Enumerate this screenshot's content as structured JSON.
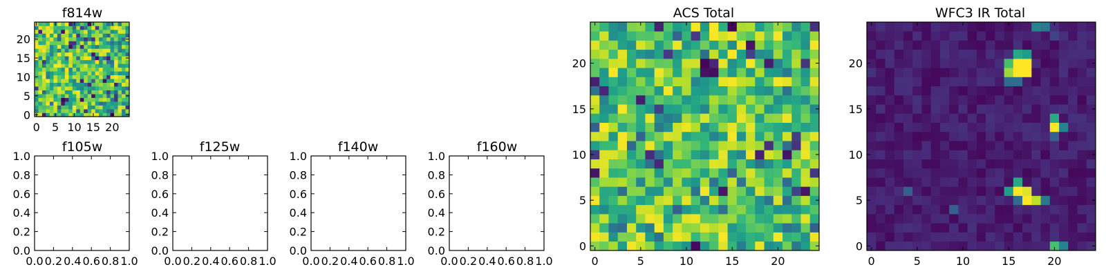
{
  "chart_data": [
    {
      "type": "heatmap",
      "title": "f814w",
      "colormap": "viridis",
      "grid_size": [
        25,
        25
      ],
      "xticks": [
        "0",
        "5",
        "10",
        "15",
        "20"
      ],
      "yticks": [
        "0",
        "5",
        "10",
        "15",
        "20"
      ],
      "xlim": [
        -0.5,
        24.5
      ],
      "ylim": [
        -0.5,
        24.5
      ],
      "pattern": "uniform noise, mostly high values"
    },
    {
      "type": "empty",
      "title": "f105w",
      "xticks": [
        "0.0",
        "0.2",
        "0.4",
        "0.6",
        "0.8",
        "1.0"
      ],
      "yticks": [
        "0.0",
        "0.2",
        "0.4",
        "0.6",
        "0.8",
        "1.0"
      ],
      "xlim": [
        0,
        1
      ],
      "ylim": [
        0,
        1
      ]
    },
    {
      "type": "empty",
      "title": "f125w",
      "xticks": [
        "0.0",
        "0.2",
        "0.4",
        "0.6",
        "0.8",
        "1.0"
      ],
      "yticks": [
        "0.0",
        "0.2",
        "0.4",
        "0.6",
        "0.8",
        "1.0"
      ],
      "xlim": [
        0,
        1
      ],
      "ylim": [
        0,
        1
      ]
    },
    {
      "type": "empty",
      "title": "f140w",
      "xticks": [
        "0.0",
        "0.2",
        "0.4",
        "0.6",
        "0.8",
        "1.0"
      ],
      "yticks": [
        "0.0",
        "0.2",
        "0.4",
        "0.6",
        "0.8",
        "1.0"
      ],
      "xlim": [
        0,
        1
      ],
      "ylim": [
        0,
        1
      ]
    },
    {
      "type": "empty",
      "title": "f160w",
      "xticks": [
        "0.0",
        "0.2",
        "0.4",
        "0.6",
        "0.8",
        "1.0"
      ],
      "yticks": [
        "0.0",
        "0.2",
        "0.4",
        "0.6",
        "0.8",
        "1.0"
      ],
      "xlim": [
        0,
        1
      ],
      "ylim": [
        0,
        1
      ]
    },
    {
      "type": "heatmap",
      "title": "ACS Total",
      "colormap": "viridis",
      "grid_size": [
        25,
        25
      ],
      "xticks": [
        "0",
        "5",
        "10",
        "15",
        "20"
      ],
      "yticks": [
        "0",
        "5",
        "10",
        "15",
        "20"
      ],
      "xlim": [
        -0.5,
        24.5
      ],
      "ylim": [
        -0.5,
        24.5
      ],
      "pattern": "uniform noise, mostly high values"
    },
    {
      "type": "heatmap",
      "title": "WFC3 IR Total",
      "colormap": "viridis",
      "grid_size": [
        25,
        25
      ],
      "xticks": [
        "0",
        "5",
        "10",
        "15",
        "20"
      ],
      "yticks": [
        "0",
        "5",
        "10",
        "15",
        "20"
      ],
      "xlim": [
        -0.5,
        24.5
      ],
      "ylim": [
        -0.5,
        24.5
      ],
      "pattern": "dark background with bright sources",
      "bright_pixels": [
        {
          "x": 16,
          "y": 20,
          "v": 1.0
        },
        {
          "x": 17,
          "y": 20,
          "v": 1.0
        },
        {
          "x": 16,
          "y": 19,
          "v": 1.0
        },
        {
          "x": 17,
          "y": 19,
          "v": 1.0
        },
        {
          "x": 15,
          "y": 19,
          "v": 0.85
        },
        {
          "x": 15,
          "y": 20,
          "v": 0.7
        },
        {
          "x": 16,
          "y": 21,
          "v": 0.6
        },
        {
          "x": 17,
          "y": 21,
          "v": 0.55
        },
        {
          "x": 15,
          "y": 18,
          "v": 0.35
        },
        {
          "x": 16,
          "y": 18,
          "v": 0.35
        },
        {
          "x": 20,
          "y": 13,
          "v": 1.0
        },
        {
          "x": 20,
          "y": 14,
          "v": 0.6
        },
        {
          "x": 21,
          "y": 13,
          "v": 0.45
        },
        {
          "x": 20,
          "y": 12,
          "v": 0.3
        },
        {
          "x": 16,
          "y": 6,
          "v": 1.0
        },
        {
          "x": 17,
          "y": 6,
          "v": 0.95
        },
        {
          "x": 17,
          "y": 5,
          "v": 1.0
        },
        {
          "x": 18,
          "y": 5,
          "v": 0.9
        },
        {
          "x": 16,
          "y": 7,
          "v": 0.6
        },
        {
          "x": 15,
          "y": 6,
          "v": 0.55
        },
        {
          "x": 19,
          "y": 5,
          "v": 0.4
        },
        {
          "x": 16,
          "y": 5,
          "v": 0.35
        },
        {
          "x": 20,
          "y": 0,
          "v": 0.7
        },
        {
          "x": 21,
          "y": 0,
          "v": 0.45
        },
        {
          "x": 18,
          "y": 24,
          "v": 0.45
        },
        {
          "x": 19,
          "y": 24,
          "v": 0.4
        },
        {
          "x": 20,
          "y": 23,
          "v": 0.2
        },
        {
          "x": 4,
          "y": 6,
          "v": 0.3
        },
        {
          "x": 9,
          "y": 4,
          "v": 0.3
        }
      ]
    }
  ]
}
